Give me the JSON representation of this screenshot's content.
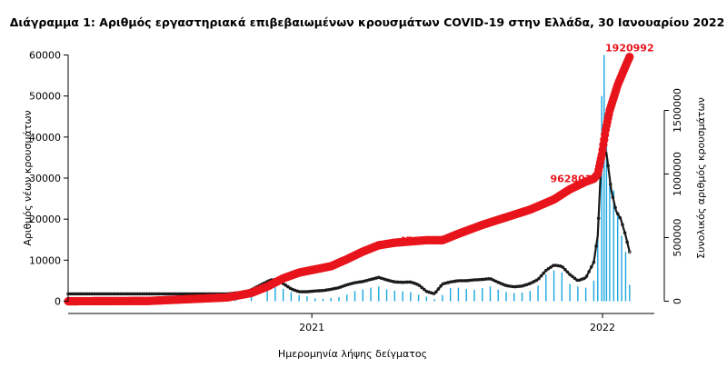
{
  "chart_data": {
    "type": "bar",
    "title": "Διάγραμμα 1: Αριθμός εργαστηριακά επιβεβαιωμένων κρουσμάτων COVID-19 στην Ελλάδα, 30 Ιανουαρίου 2022",
    "xlabel": "Ημερομηνία λήψης δείγματος",
    "ylabel": "Αριθμός νέων κρουσμάτων",
    "y2label": "Συνολικός αριθμός κρουσμάτων",
    "x_tick_labels": [
      "2021",
      "2022"
    ],
    "x_ticks_days": [
      306,
      671
    ],
    "x_range_days": [
      0,
      736
    ],
    "x_start": "2020-02-26",
    "ylim": [
      0,
      60000
    ],
    "y_ticks": [
      0,
      10000,
      20000,
      30000,
      40000,
      50000,
      60000
    ],
    "y2lim": [
      0,
      1700000
    ],
    "y2_ticks": [
      0,
      500000,
      1000000,
      1500000
    ],
    "grid": false,
    "colors": {
      "daily_bars": "#1aa7e0",
      "moving_average": "#1a1a1a",
      "cumulative": "#e8141c"
    },
    "series": [
      {
        "name": "",
        "role": "daily_new_cases",
        "axis": "left",
        "render": "bars",
        "x_days": [
          0,
          30,
          60,
          90,
          120,
          150,
          180,
          210,
          230,
          250,
          260,
          270,
          280,
          290,
          300,
          310,
          320,
          330,
          340,
          350,
          360,
          370,
          380,
          390,
          400,
          410,
          420,
          430,
          440,
          450,
          460,
          470,
          480,
          490,
          500,
          510,
          520,
          530,
          540,
          550,
          560,
          570,
          580,
          590,
          600,
          610,
          620,
          630,
          640,
          650,
          660,
          665,
          670,
          673,
          676,
          680,
          685,
          690,
          695,
          700,
          705
        ],
        "values": [
          10,
          30,
          20,
          10,
          20,
          200,
          300,
          900,
          1900,
          2900,
          3400,
          3000,
          2200,
          1500,
          1200,
          700,
          600,
          800,
          1000,
          1600,
          2500,
          2900,
          3300,
          3600,
          2900,
          2600,
          2400,
          2200,
          1600,
          1100,
          500,
          1500,
          3200,
          3300,
          3000,
          2800,
          3200,
          3600,
          2800,
          2300,
          2000,
          2100,
          2500,
          3800,
          6500,
          7500,
          7000,
          4200,
          3600,
          3300,
          5000,
          18000,
          50000,
          60000,
          40000,
          30000,
          27000,
          21000,
          16000,
          12000,
          4000
        ]
      },
      {
        "name": "",
        "role": "moving_average",
        "axis": "left",
        "render": "line",
        "x_days": [
          0,
          30,
          60,
          90,
          120,
          150,
          180,
          200,
          210,
          220,
          230,
          240,
          250,
          255,
          262,
          270,
          280,
          290,
          300,
          310,
          320,
          330,
          340,
          350,
          360,
          370,
          380,
          390,
          400,
          410,
          420,
          430,
          440,
          450,
          460,
          470,
          480,
          490,
          500,
          510,
          520,
          530,
          540,
          550,
          560,
          570,
          580,
          590,
          600,
          610,
          620,
          630,
          640,
          650,
          660,
          665,
          670,
          676,
          682,
          688,
          694,
          700,
          705
        ],
        "values": [
          1800,
          1800,
          1800,
          1800,
          1800,
          1800,
          1800,
          1800,
          2000,
          2000,
          2800,
          3800,
          4800,
          5200,
          5200,
          4300,
          3000,
          2300,
          2300,
          2500,
          2600,
          2900,
          3300,
          4000,
          4500,
          4800,
          5300,
          5800,
          5200,
          4700,
          4600,
          4700,
          4000,
          2400,
          1800,
          4200,
          4700,
          5000,
          5000,
          5200,
          5300,
          5500,
          4600,
          3800,
          3500,
          3700,
          4300,
          5300,
          7500,
          8800,
          8500,
          6500,
          5000,
          5700,
          9500,
          16000,
          37000,
          36000,
          27000,
          22000,
          20000,
          16000,
          12000
        ]
      },
      {
        "name": "",
        "role": "cumulative_cases",
        "axis": "right",
        "render": "line",
        "x_days": [
          0,
          100,
          200,
          230,
          250,
          270,
          290,
          310,
          330,
          350,
          370,
          390,
          410,
          430,
          450,
          470,
          490,
          520,
          550,
          580,
          610,
          630,
          650,
          660,
          665,
          670,
          675,
          680,
          690,
          700,
          705
        ],
        "values": [
          0,
          2000,
          30000,
          65000,
          115000,
          180000,
          225000,
          250000,
          275000,
          330000,
          390000,
          440000,
          460000,
          470000,
          480000,
          479582,
          530000,
          600000,
          660000,
          720000,
          800000,
          880000,
          940000,
          962800,
          1000000,
          1150000,
          1350000,
          1500000,
          1700000,
          1850000,
          1920992
        ]
      }
    ],
    "annotations": [
      {
        "text": "479582",
        "x_day": 470,
        "value": 479582
      },
      {
        "text": "962803",
        "x_day": 660,
        "value": 962803
      },
      {
        "text": "1920992",
        "x_day": 705,
        "value": 1920992
      }
    ]
  }
}
